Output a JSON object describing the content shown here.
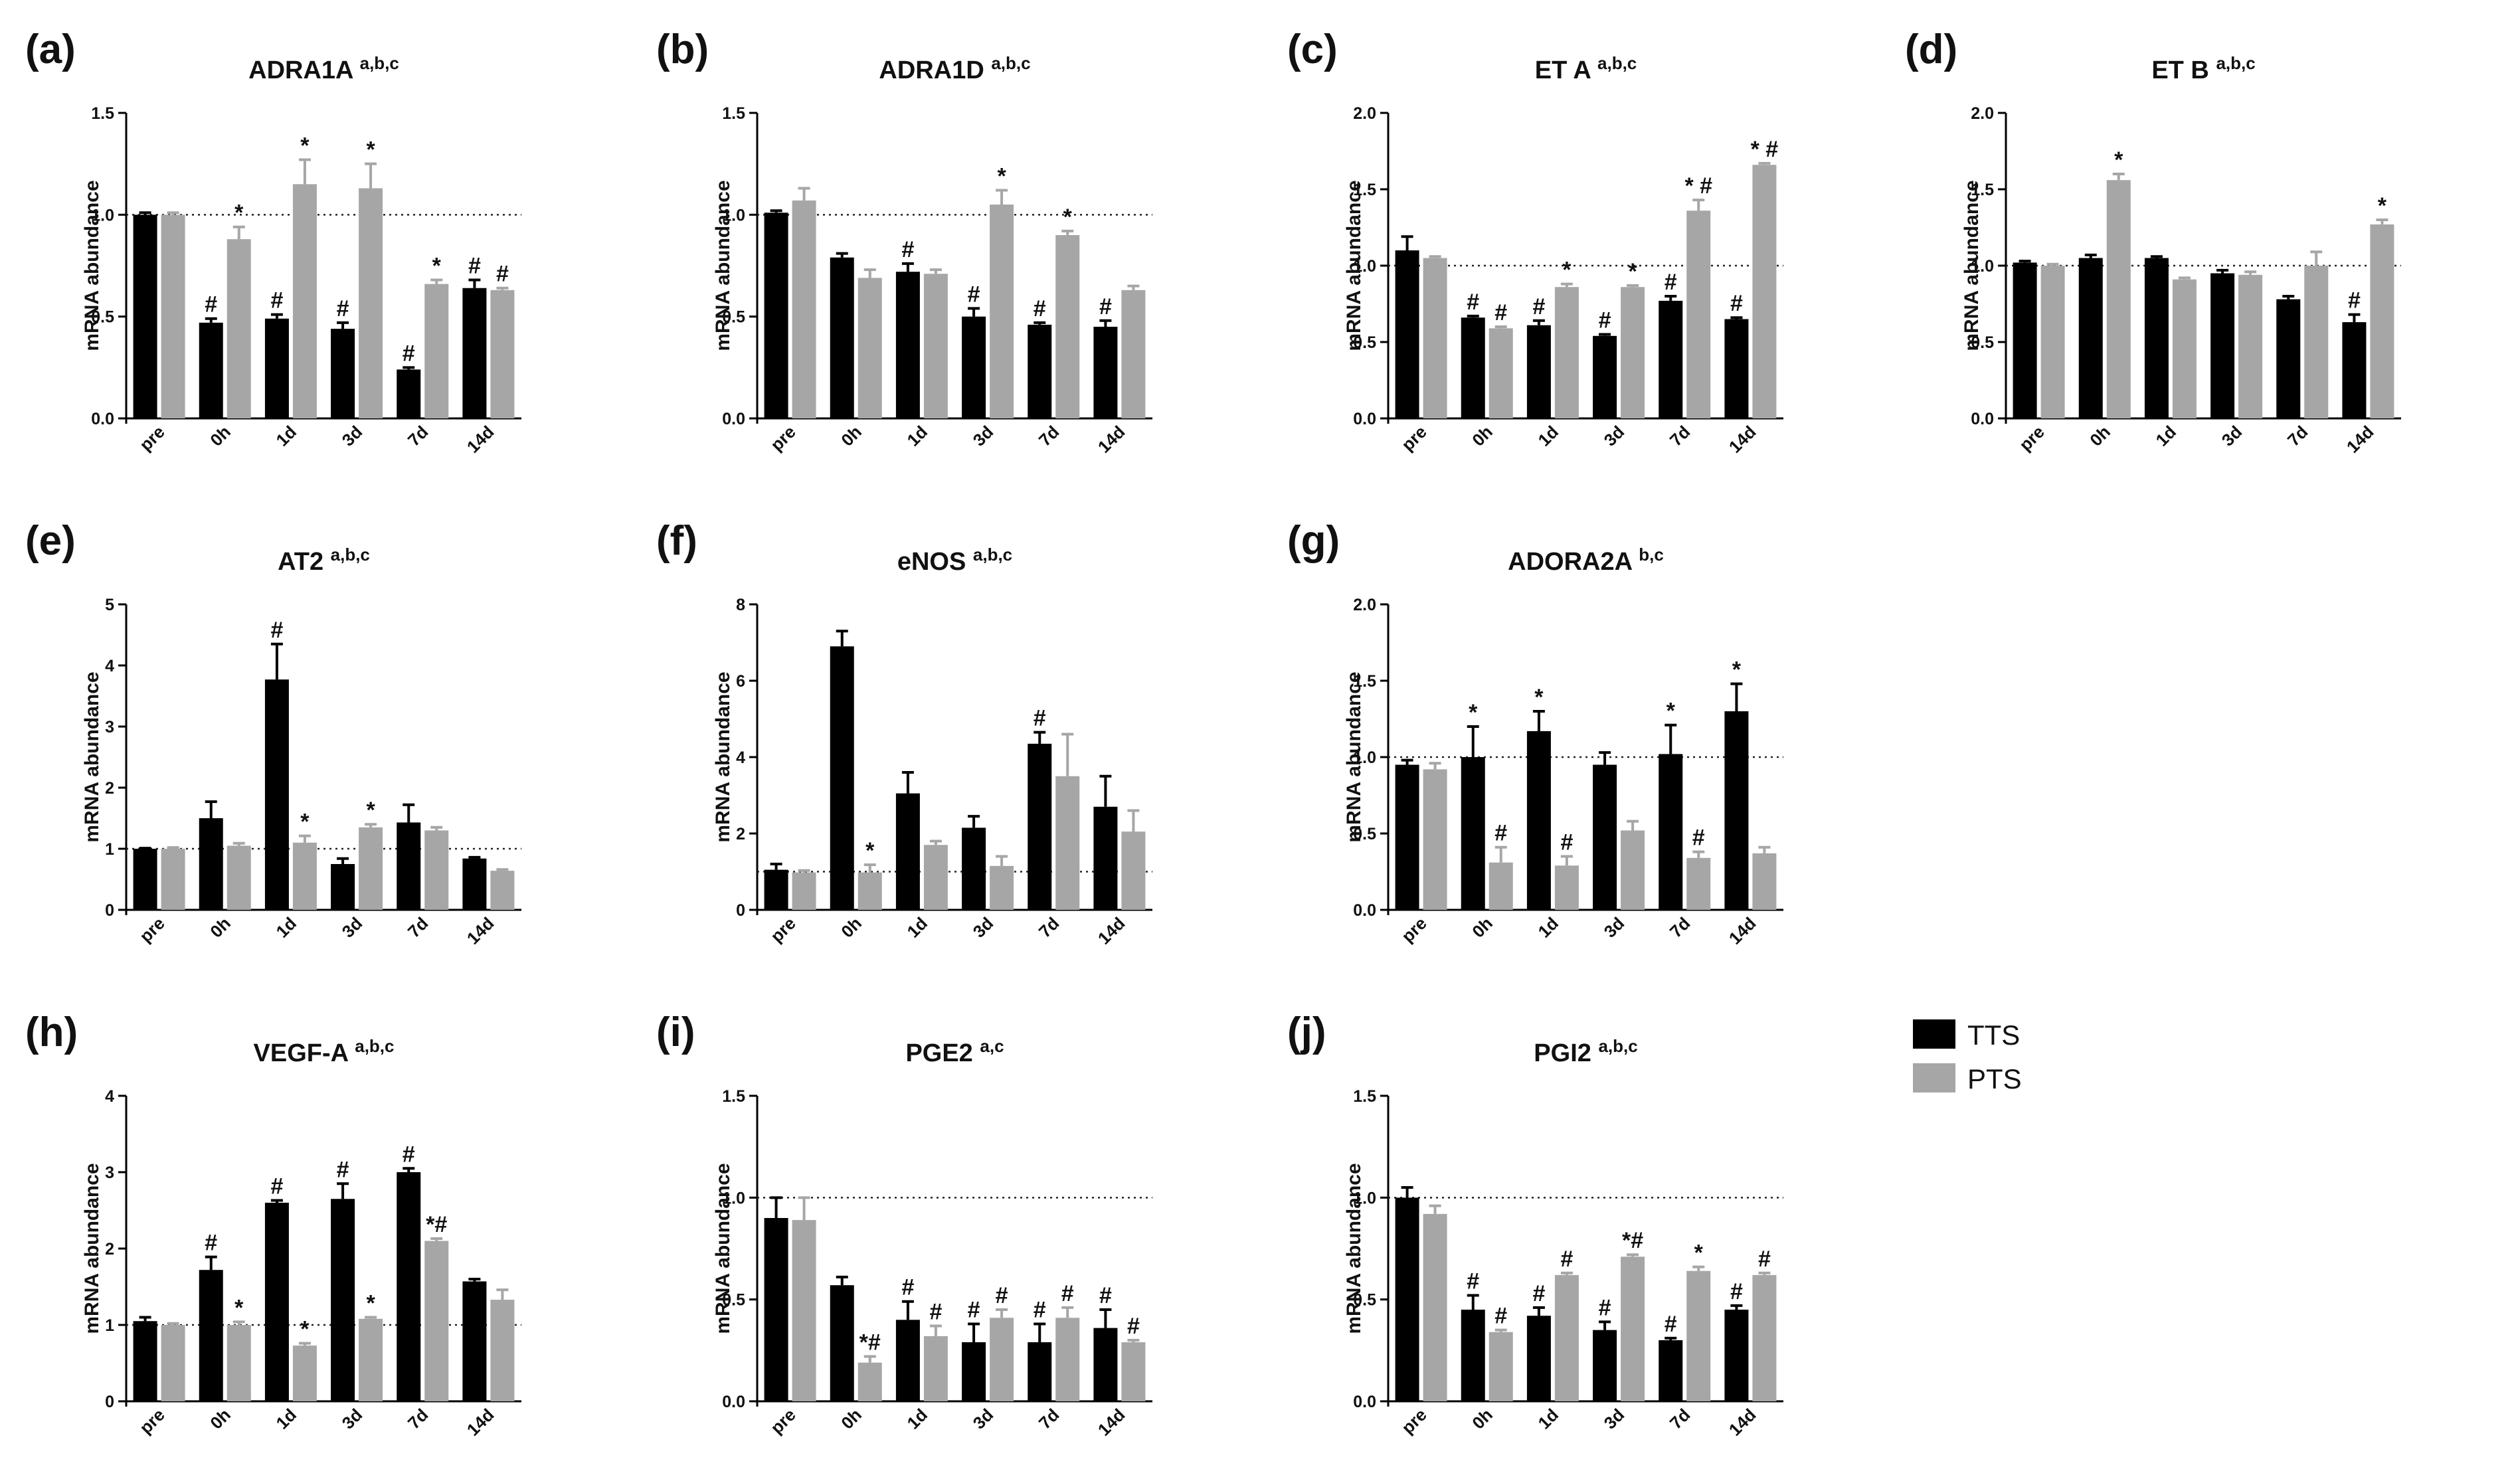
{
  "colors": {
    "TTS": "#000000",
    "PTS": "#a6a6a6",
    "axis": "#000000"
  },
  "legend": {
    "items": [
      {
        "label": "TTS",
        "color": "#000000"
      },
      {
        "label": "PTS",
        "color": "#a6a6a6"
      }
    ]
  },
  "chart_data": [
    {
      "letter": "(a)",
      "title": "ADRA1A",
      "superscript": "a,b,c",
      "type": "bar",
      "ylabel": "mRNA abundance",
      "categories": [
        "pre",
        "0h",
        "1d",
        "3d",
        "7d",
        "14d"
      ],
      "ylim": [
        0,
        1.5
      ],
      "yticks": [
        "0.0",
        "0.5",
        "1.0",
        "1.5"
      ],
      "reference_line": 1,
      "series": [
        {
          "name": "TTS",
          "values": [
            1.0,
            0.47,
            0.49,
            0.44,
            0.24,
            0.64
          ],
          "errors": [
            0.01,
            0.02,
            0.02,
            0.03,
            0.01,
            0.04
          ],
          "annotations": [
            "",
            "#",
            "#",
            "#",
            "#",
            "#"
          ]
        },
        {
          "name": "PTS",
          "values": [
            1.0,
            0.88,
            1.15,
            1.13,
            0.66,
            0.63
          ],
          "errors": [
            0.01,
            0.06,
            0.12,
            0.12,
            0.02,
            0.01
          ],
          "annotations": [
            "",
            "*",
            "*",
            "*",
            "*",
            "#"
          ]
        }
      ]
    },
    {
      "letter": "(b)",
      "title": "ADRA1D",
      "superscript": "a,b,c",
      "type": "bar",
      "ylabel": "mRNA abundance",
      "categories": [
        "pre",
        "0h",
        "1d",
        "3d",
        "7d",
        "14d"
      ],
      "ylim": [
        0,
        1.5
      ],
      "yticks": [
        "0.0",
        "0.5",
        "1.0",
        "1.5"
      ],
      "reference_line": 1,
      "series": [
        {
          "name": "TTS",
          "values": [
            1.01,
            0.79,
            0.72,
            0.5,
            0.46,
            0.45
          ],
          "errors": [
            0.01,
            0.02,
            0.04,
            0.04,
            0.01,
            0.03
          ],
          "annotations": [
            "",
            "",
            "#",
            "#",
            "#",
            "#"
          ]
        },
        {
          "name": "PTS",
          "values": [
            1.07,
            0.69,
            0.71,
            1.05,
            0.9,
            0.63
          ],
          "errors": [
            0.06,
            0.04,
            0.02,
            0.07,
            0.02,
            0.02
          ],
          "annotations": [
            "",
            "",
            "",
            "*",
            "*",
            ""
          ]
        }
      ]
    },
    {
      "letter": "(c)",
      "title": "ET A",
      "superscript": "a,b,c",
      "type": "bar",
      "ylabel": "mRNA abundance",
      "categories": [
        "pre",
        "0h",
        "1d",
        "3d",
        "7d",
        "14d"
      ],
      "ylim": [
        0,
        2.0
      ],
      "yticks": [
        "0.0",
        "0.5",
        "1.0",
        "1.5",
        "2.0"
      ],
      "reference_line": 1,
      "series": [
        {
          "name": "TTS",
          "values": [
            1.1,
            0.66,
            0.61,
            0.54,
            0.77,
            0.65
          ],
          "errors": [
            0.09,
            0.01,
            0.03,
            0.01,
            0.03,
            0.01
          ],
          "annotations": [
            "",
            "#",
            "#",
            "#",
            "#",
            "#"
          ]
        },
        {
          "name": "PTS",
          "values": [
            1.05,
            0.59,
            0.86,
            0.86,
            1.36,
            1.66
          ],
          "errors": [
            0.01,
            0.01,
            0.02,
            0.01,
            0.07,
            0.01
          ],
          "annotations": [
            "",
            "#",
            "*",
            "*",
            "* #",
            "* #"
          ]
        }
      ]
    },
    {
      "letter": "(d)",
      "title": "ET B",
      "superscript": "a,b,c",
      "type": "bar",
      "ylabel": "mRNA abundance",
      "categories": [
        "pre",
        "0h",
        "1d",
        "3d",
        "7d",
        "14d"
      ],
      "ylim": [
        0,
        2.0
      ],
      "yticks": [
        "0.0",
        "0.5",
        "1.0",
        "1.5",
        "2.0"
      ],
      "reference_line": 1,
      "series": [
        {
          "name": "TTS",
          "values": [
            1.02,
            1.05,
            1.05,
            0.95,
            0.78,
            0.63
          ],
          "errors": [
            0.01,
            0.02,
            0.01,
            0.02,
            0.02,
            0.05
          ],
          "annotations": [
            "",
            "",
            "",
            "",
            "",
            "#"
          ]
        },
        {
          "name": "PTS",
          "values": [
            1.0,
            1.56,
            0.91,
            0.94,
            1.0,
            1.27
          ],
          "errors": [
            0.01,
            0.04,
            0.01,
            0.02,
            0.09,
            0.03
          ],
          "annotations": [
            "",
            "*",
            "",
            "",
            "",
            "*"
          ]
        }
      ]
    },
    {
      "letter": "(e)",
      "title": "AT2",
      "superscript": "a,b,c",
      "type": "bar",
      "ylabel": "mRNA abundance",
      "categories": [
        "pre",
        "0h",
        "1d",
        "3d",
        "7d",
        "14d"
      ],
      "ylim": [
        0,
        5
      ],
      "yticks": [
        "0",
        "1",
        "2",
        "3",
        "4",
        "5"
      ],
      "reference_line": 1,
      "series": [
        {
          "name": "TTS",
          "values": [
            1.0,
            1.5,
            3.77,
            0.75,
            1.43,
            0.84
          ],
          "errors": [
            0.01,
            0.27,
            0.58,
            0.09,
            0.29,
            0.02
          ],
          "annotations": [
            "",
            "",
            "#",
            "",
            "",
            ""
          ]
        },
        {
          "name": "PTS",
          "values": [
            1.0,
            1.05,
            1.1,
            1.35,
            1.3,
            0.64
          ],
          "errors": [
            0.02,
            0.04,
            0.11,
            0.05,
            0.05,
            0.02
          ],
          "annotations": [
            "",
            "",
            "*",
            "*",
            "",
            ""
          ]
        }
      ]
    },
    {
      "letter": "(f)",
      "title": "eNOS",
      "superscript": "a,b,c",
      "type": "bar",
      "ylabel": "mRNA abundance",
      "categories": [
        "pre",
        "0h",
        "1d",
        "3d",
        "7d",
        "14d"
      ],
      "ylim": [
        0,
        8
      ],
      "yticks": [
        "0",
        "2",
        "4",
        "6",
        "8"
      ],
      "reference_line": 1,
      "series": [
        {
          "name": "TTS",
          "values": [
            1.05,
            6.9,
            3.05,
            2.15,
            4.35,
            2.7
          ],
          "errors": [
            0.15,
            0.4,
            0.55,
            0.3,
            0.3,
            0.8
          ],
          "annotations": [
            "",
            "",
            "",
            "",
            "#",
            ""
          ]
        },
        {
          "name": "PTS",
          "values": [
            0.98,
            0.98,
            1.7,
            1.15,
            3.5,
            2.05
          ],
          "errors": [
            0.05,
            0.2,
            0.1,
            0.25,
            1.1,
            0.55
          ],
          "annotations": [
            "",
            "*",
            "",
            "",
            "",
            ""
          ]
        }
      ]
    },
    {
      "letter": "(g)",
      "title": "ADORA2A",
      "superscript": "b,c",
      "type": "bar",
      "ylabel": "mRNA abundance",
      "categories": [
        "pre",
        "0h",
        "1d",
        "3d",
        "7d",
        "14d"
      ],
      "ylim": [
        0,
        2.0
      ],
      "yticks": [
        "0.0",
        "0.5",
        "1.0",
        "1.5",
        "2.0"
      ],
      "reference_line": 1,
      "series": [
        {
          "name": "TTS",
          "values": [
            0.95,
            1.0,
            1.17,
            0.95,
            1.02,
            1.3
          ],
          "errors": [
            0.03,
            0.2,
            0.13,
            0.08,
            0.19,
            0.18
          ],
          "annotations": [
            "",
            "*",
            "*",
            "",
            "*",
            "*"
          ]
        },
        {
          "name": "PTS",
          "values": [
            0.92,
            0.31,
            0.29,
            0.52,
            0.34,
            0.37
          ],
          "errors": [
            0.04,
            0.1,
            0.06,
            0.06,
            0.04,
            0.04
          ],
          "annotations": [
            "",
            "#",
            "#",
            "",
            "#",
            ""
          ]
        }
      ]
    },
    {
      "letter": "(h)",
      "title": "VEGF-A",
      "superscript": "a,b,c",
      "type": "bar",
      "ylabel": "mRNA abundance",
      "categories": [
        "pre",
        "0h",
        "1d",
        "3d",
        "7d",
        "14d"
      ],
      "ylim": [
        0,
        4
      ],
      "yticks": [
        "0",
        "1",
        "2",
        "3",
        "4"
      ],
      "reference_line": 1,
      "series": [
        {
          "name": "TTS",
          "values": [
            1.05,
            1.72,
            2.6,
            2.65,
            3.0,
            1.57
          ],
          "errors": [
            0.05,
            0.17,
            0.03,
            0.2,
            0.05,
            0.03
          ],
          "annotations": [
            "",
            "#",
            "#",
            "#",
            "#",
            ""
          ]
        },
        {
          "name": "PTS",
          "values": [
            1.0,
            1.0,
            0.73,
            1.08,
            2.1,
            1.33
          ],
          "errors": [
            0.02,
            0.04,
            0.03,
            0.02,
            0.03,
            0.13
          ],
          "annotations": [
            "",
            "*",
            "*",
            "*",
            "*#",
            ""
          ]
        }
      ]
    },
    {
      "letter": "(i)",
      "title": "PGE2",
      "superscript": "a,c",
      "type": "bar",
      "ylabel": "mRNA abundance",
      "categories": [
        "pre",
        "0h",
        "1d",
        "3d",
        "7d",
        "14d"
      ],
      "ylim": [
        0,
        1.5
      ],
      "yticks": [
        "0.0",
        "0.5",
        "1.0",
        "1.5"
      ],
      "reference_line": 1,
      "series": [
        {
          "name": "TTS",
          "values": [
            0.9,
            0.57,
            0.4,
            0.29,
            0.29,
            0.36
          ],
          "errors": [
            0.1,
            0.04,
            0.09,
            0.09,
            0.09,
            0.09
          ],
          "annotations": [
            "",
            "",
            "#",
            "#",
            "#",
            "#"
          ]
        },
        {
          "name": "PTS",
          "values": [
            0.89,
            0.19,
            0.32,
            0.41,
            0.41,
            0.29
          ],
          "errors": [
            0.11,
            0.03,
            0.05,
            0.04,
            0.05,
            0.01
          ],
          "annotations": [
            "",
            "*#",
            "#",
            "#",
            "#",
            "#"
          ]
        }
      ]
    },
    {
      "letter": "(j)",
      "title": "PGI2",
      "superscript": "a,b,c",
      "type": "bar",
      "ylabel": "mRNA abundance",
      "categories": [
        "pre",
        "0h",
        "1d",
        "3d",
        "7d",
        "14d"
      ],
      "ylim": [
        0,
        1.5
      ],
      "yticks": [
        "0.0",
        "0.5",
        "1.0",
        "1.5"
      ],
      "reference_line": 1,
      "series": [
        {
          "name": "TTS",
          "values": [
            1.0,
            0.45,
            0.42,
            0.35,
            0.3,
            0.45
          ],
          "errors": [
            0.05,
            0.07,
            0.04,
            0.04,
            0.01,
            0.02
          ],
          "annotations": [
            "",
            "#",
            "#",
            "#",
            "#",
            "#"
          ]
        },
        {
          "name": "PTS",
          "values": [
            0.92,
            0.34,
            0.62,
            0.71,
            0.64,
            0.62
          ],
          "errors": [
            0.04,
            0.01,
            0.01,
            0.01,
            0.02,
            0.01
          ],
          "annotations": [
            "",
            "#",
            "#",
            "*#",
            "*",
            "#"
          ]
        }
      ]
    }
  ]
}
